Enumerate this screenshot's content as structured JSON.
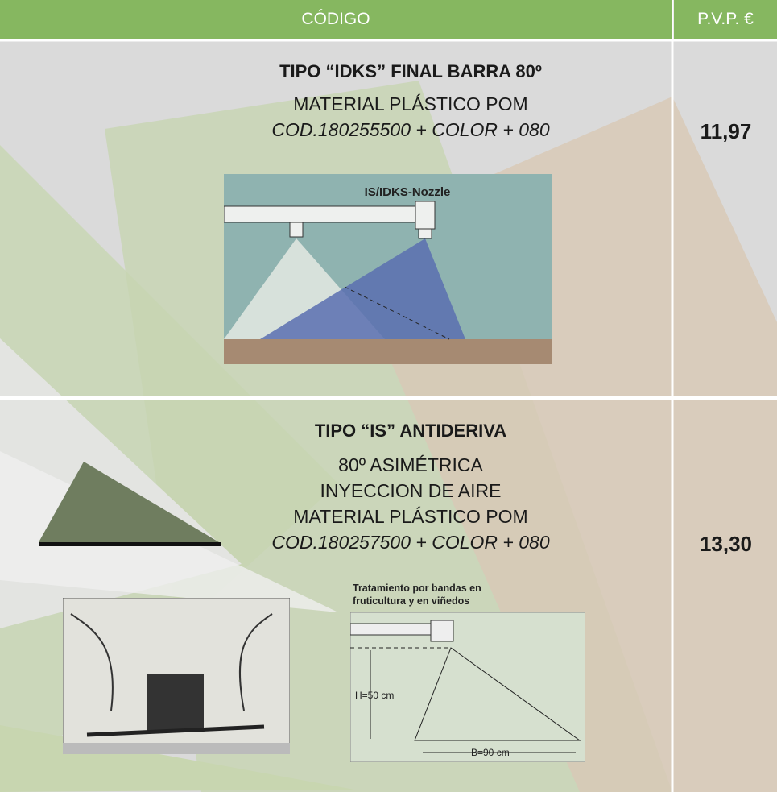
{
  "table": {
    "header": [
      "CÓDIGO",
      "P.V.P. €"
    ],
    "rows": [
      {
        "title": "TIPO “IDKS” FINAL BARRA 80º",
        "lines": [
          "MATERIAL PLÁSTICO POM"
        ],
        "code": "COD.180255500 + COLOR + 080",
        "price": "11,97",
        "figure_labels": [
          "IS/IDKS-Nozzle"
        ]
      },
      {
        "title": "TIPO “IS” ANTIDERIVA",
        "lines": [
          "80º ASIMÉTRICA",
          "INYECCION DE AIRE",
          "MATERIAL PLÁSTICO POM"
        ],
        "code": "COD.180257500 + COLOR + 080",
        "price": "13,30",
        "figure_labels": [
          "Tratamiento por bandas en",
          "fruticultura y en viñedos",
          "H=50 cm",
          "B=90 cm"
        ]
      }
    ]
  }
}
